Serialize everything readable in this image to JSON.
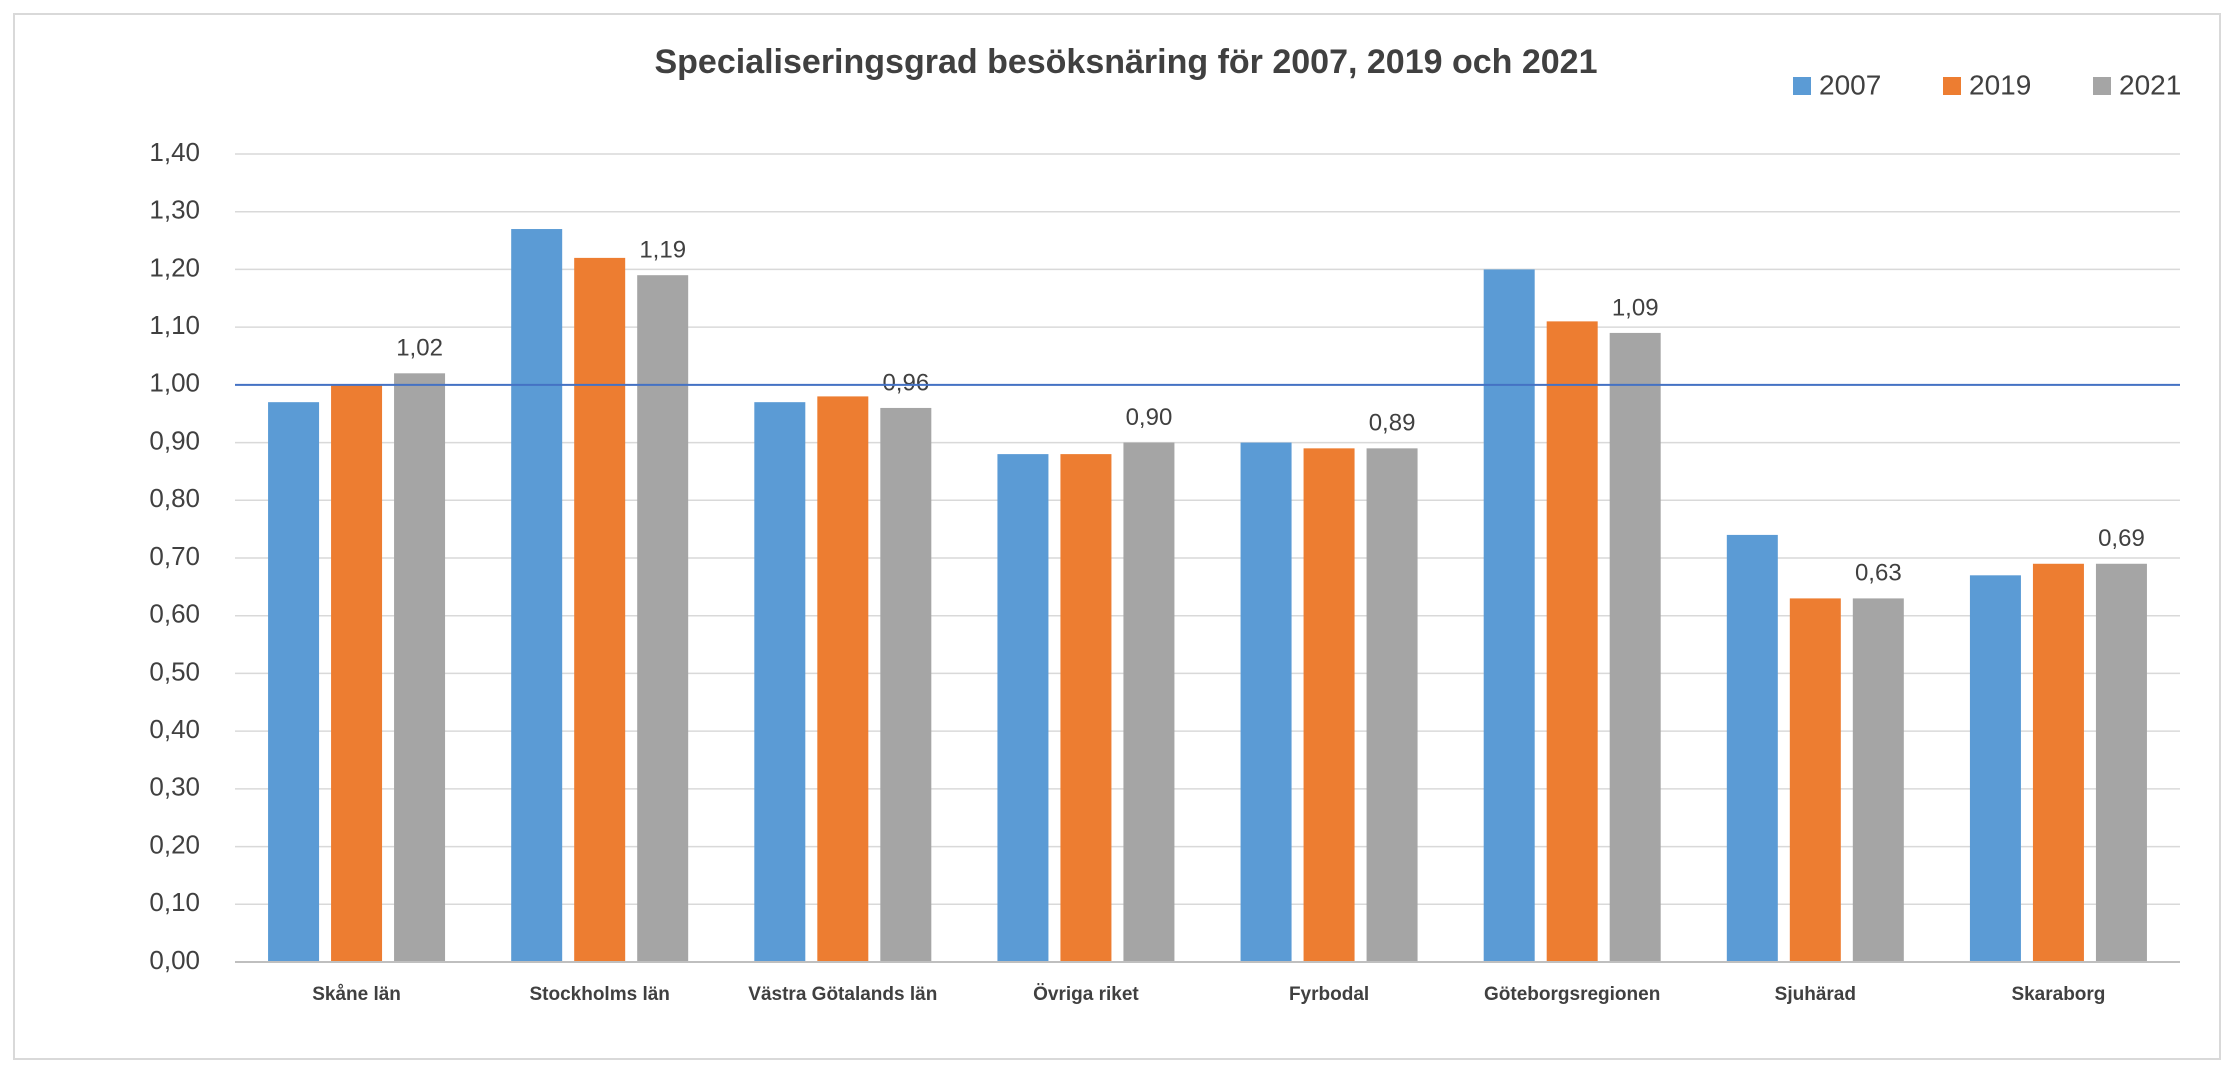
{
  "chart_data": {
    "type": "bar",
    "title": "Specialiseringsgrad besöksnäring för 2007, 2019 och 2021",
    "categories": [
      "Skåne län",
      "Stockholms län",
      "Västra Götalands län",
      "Övriga riket",
      "Fyrbodal",
      "Göteborgsregionen",
      "Sjuhärad",
      "Skaraborg"
    ],
    "series": [
      {
        "name": "2007",
        "color": "#5b9bd5",
        "values": [
          0.97,
          1.27,
          0.97,
          0.88,
          0.9,
          1.2,
          0.74,
          0.67
        ]
      },
      {
        "name": "2019",
        "color": "#ed7d31",
        "values": [
          1.0,
          1.22,
          0.98,
          0.88,
          0.89,
          1.11,
          0.63,
          0.69
        ]
      },
      {
        "name": "2021",
        "color": "#a5a5a5",
        "values": [
          1.02,
          1.19,
          0.96,
          0.9,
          0.89,
          1.09,
          0.63,
          0.69
        ],
        "value_labels": [
          "1,02",
          "1,19",
          "0,96",
          "0,90",
          "0,89",
          "1,09",
          "0,63",
          "0,69"
        ]
      }
    ],
    "ylim": [
      0,
      1.4
    ],
    "yticks": [
      {
        "value": 0,
        "label": "0,00"
      },
      {
        "value": 0.1,
        "label": "0,10"
      },
      {
        "value": 0.2,
        "label": "0,20"
      },
      {
        "value": 0.3,
        "label": "0,30"
      },
      {
        "value": 0.4,
        "label": "0,40"
      },
      {
        "value": 0.5,
        "label": "0,50"
      },
      {
        "value": 0.6,
        "label": "0,60"
      },
      {
        "value": 0.7,
        "label": "0,70"
      },
      {
        "value": 0.8,
        "label": "0,80"
      },
      {
        "value": 0.9,
        "label": "0,90"
      },
      {
        "value": 1.0,
        "label": "1,00"
      },
      {
        "value": 1.1,
        "label": "1,10"
      },
      {
        "value": 1.2,
        "label": "1,20"
      },
      {
        "value": 1.3,
        "label": "1,30"
      },
      {
        "value": 1.4,
        "label": "1,40"
      }
    ],
    "reference_line": {
      "value": 1,
      "color": "#4472c4"
    },
    "grid": true,
    "legend": "top-right"
  }
}
